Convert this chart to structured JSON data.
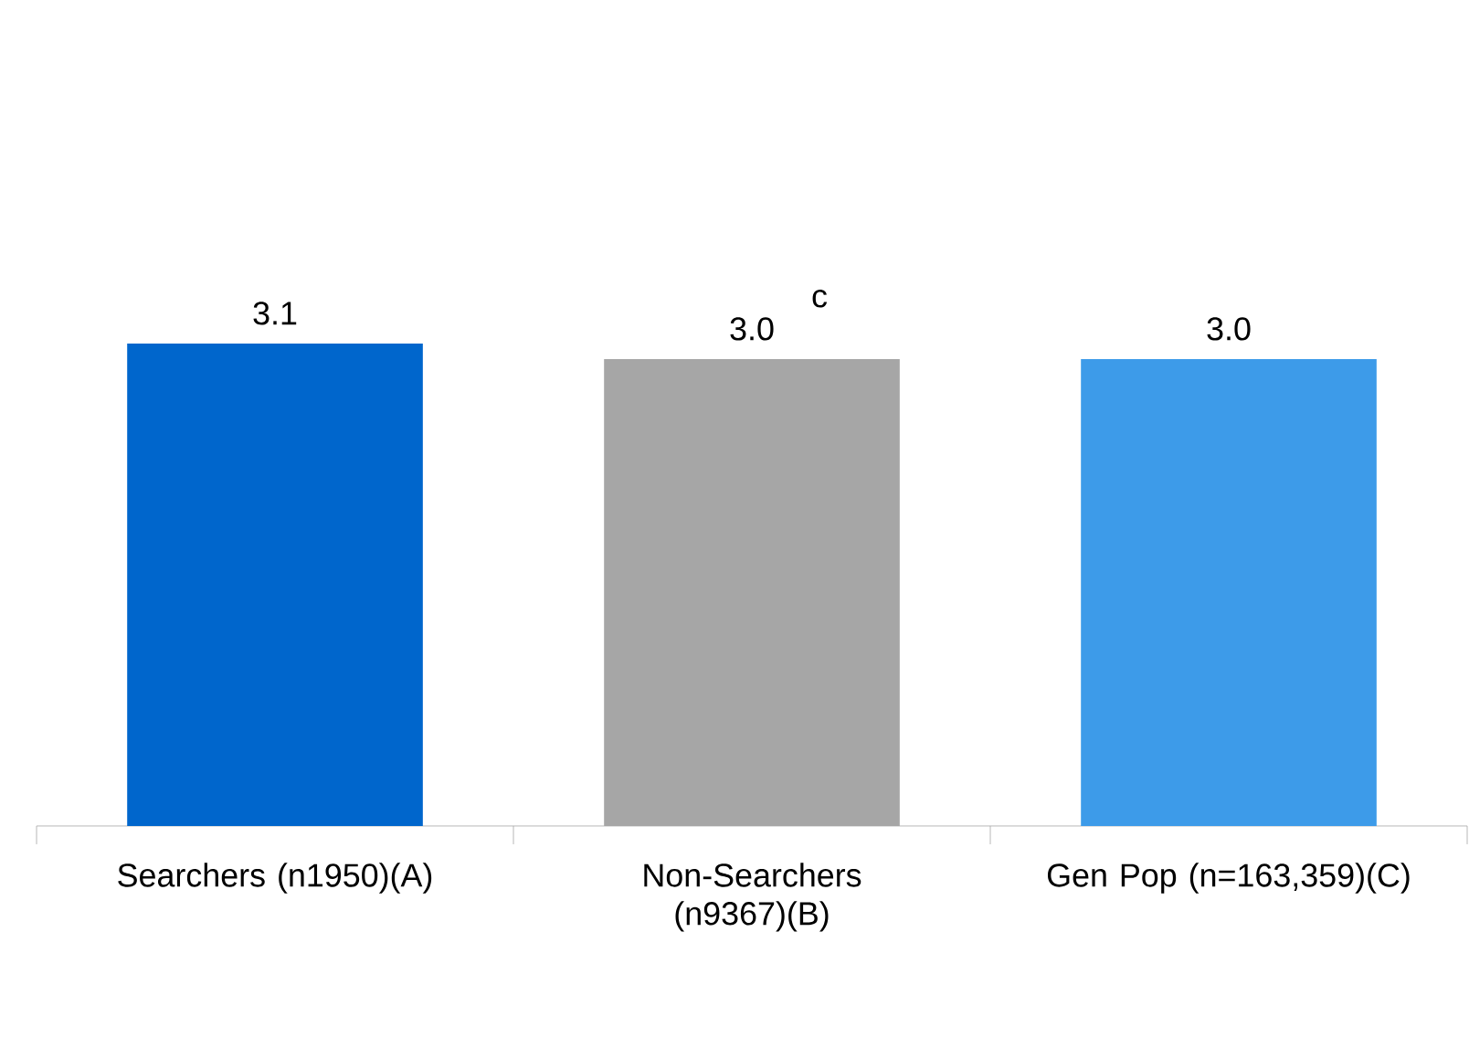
{
  "chart_data": {
    "type": "bar",
    "categories": [
      "Searchers (n1950)(A)",
      "Non-Searchers (n9367)(B)",
      "Gen Pop (n=163,359)(C)"
    ],
    "values": [
      3.1,
      3.0,
      3.0
    ],
    "colors": [
      "#0066cc",
      "#a6a6a6",
      "#3d9be9"
    ],
    "value_labels": [
      "3.1",
      "3.0",
      "3.0"
    ],
    "annotations": [
      {
        "text": "c",
        "x": "Non-Searchers (n9367)(B)",
        "y": 3.0
      }
    ]
  }
}
